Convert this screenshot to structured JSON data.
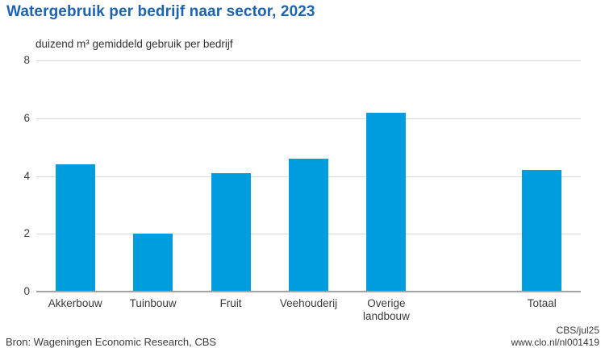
{
  "chart_data": {
    "type": "bar",
    "title": "Watergebruik per bedrijf naar sector, 2023",
    "ylabel": "duizend m³ gemiddeld gebruik per bedrijf",
    "xlabel": "",
    "categories": [
      "Akkerbouw",
      "Tuinbouw",
      "Fruit",
      "Veehouderij",
      "Overige landbouw",
      "Totaal"
    ],
    "values": [
      4.4,
      2.0,
      4.1,
      4.6,
      6.2,
      4.2
    ],
    "ylim": [
      0,
      8
    ],
    "yticks": [
      0,
      2,
      4,
      6,
      8
    ],
    "grid": true,
    "legend": "none",
    "layout": {
      "gap_before_last_category": true,
      "total_slots": 7
    }
  },
  "footer": {
    "source": "Bron: Wageningen Economic Research, CBS",
    "brand": "CBS/jul25",
    "url": "www.clo.nl/nl001419"
  },
  "colors": {
    "title": "#1d64af",
    "bar": "#009dde",
    "grid": "#d9d9d9",
    "axis": "#a3a3a3",
    "text": "#3a3a3a"
  }
}
